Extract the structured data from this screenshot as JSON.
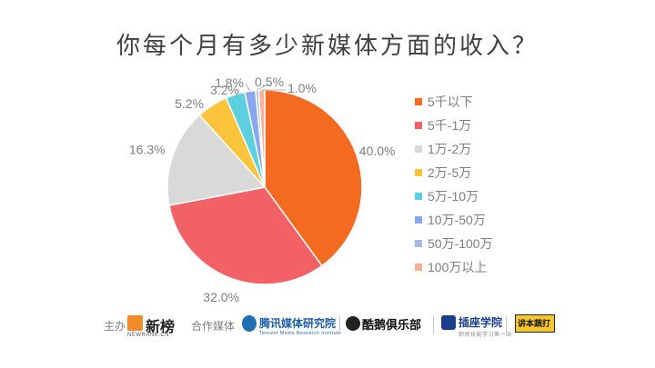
{
  "title": "你每个月有多少新媒体方面的收入？",
  "chart_data": {
    "type": "pie",
    "title": "你每个月有多少新媒体方面的收入？",
    "categories": [
      "5千以下",
      "5千-1万",
      "1万-2万",
      "2万-5万",
      "5万-10万",
      "10万-50万",
      "50万-100万",
      "100万以上"
    ],
    "values": [
      40.0,
      32.0,
      16.3,
      5.2,
      3.2,
      1.8,
      0.5,
      1.0
    ],
    "labels": [
      "40.0%",
      "32.0%",
      "16.3%",
      "5.2%",
      "3.2%",
      "1.8%",
      "0.5%",
      "1.0%"
    ],
    "colors": [
      "#f26b21",
      "#f16166",
      "#d9d9d9",
      "#fbc43b",
      "#5dd0df",
      "#8aa6ee",
      "#a6b9e0",
      "#f2b39a"
    ],
    "legend_position": "right",
    "start_angle": "top",
    "direction": "clockwise"
  },
  "footer": {
    "host_label": "主办",
    "host_logo_text": "新榜",
    "host_logo_sub": "NEWRANK.CN",
    "partner_label": "合作媒体",
    "partners": [
      {
        "name": "腾讯媒体研究院",
        "sub": "Tencent Media Research Institute"
      },
      {
        "name": "酷鹅俱乐部"
      },
      {
        "name": "插座学院",
        "sub": "职场技能学习第一站"
      },
      {
        "name": "讲本蔬打"
      }
    ]
  }
}
